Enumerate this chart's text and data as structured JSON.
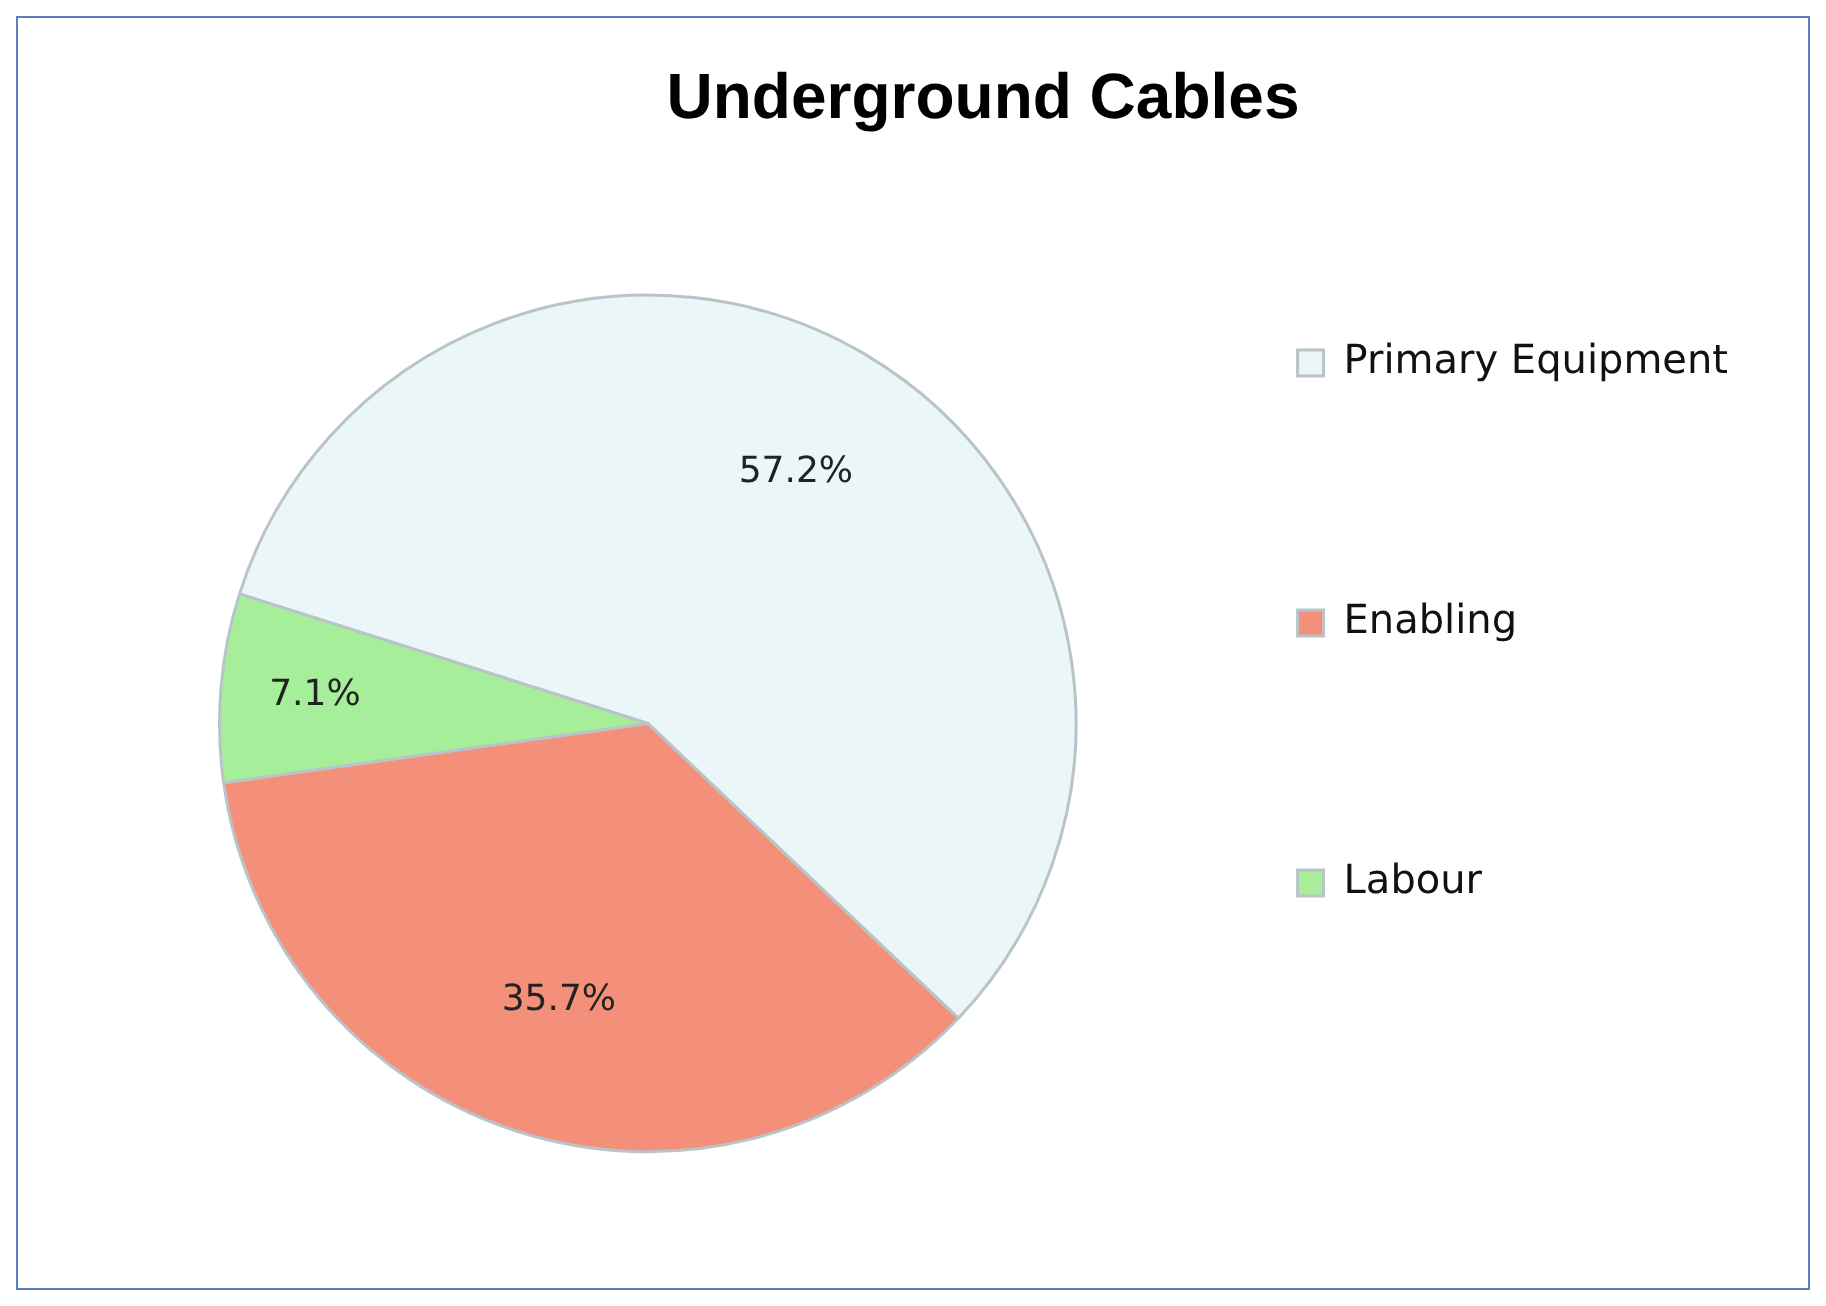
{
  "chart_data": {
    "type": "pie",
    "title": "Underground Cables",
    "categories": [
      "Primary Equipment",
      "Enabling",
      "Labour"
    ],
    "values": [
      57.2,
      35.7,
      7.1
    ],
    "colors": [
      "#eaf6f8",
      "#f4907a",
      "#a6ee9a"
    ],
    "value_labels": [
      "57.2%",
      "35.7%",
      "7.1%"
    ],
    "legend": "right"
  }
}
